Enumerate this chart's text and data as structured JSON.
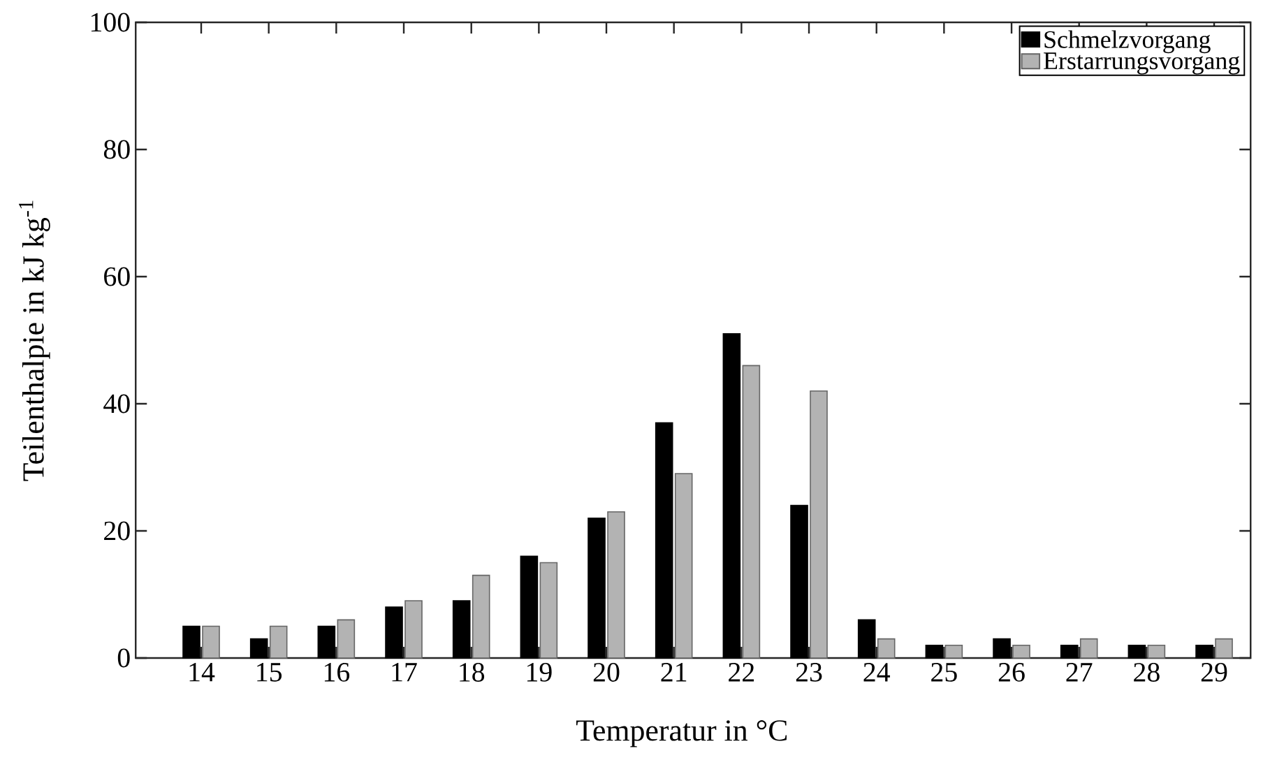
{
  "chart_data": {
    "type": "bar",
    "xlabel": "Temperatur in °C",
    "ylabel": "Teilenthalpie in kJ kg$^{-1}$",
    "categories": [
      "14",
      "15",
      "16",
      "17",
      "18",
      "19",
      "20",
      "21",
      "22",
      "23",
      "24",
      "25",
      "26",
      "27",
      "28",
      "29"
    ],
    "series": [
      {
        "name": "Schmelzvorgang",
        "color": "#000000",
        "values": [
          5,
          3,
          5,
          8,
          9,
          16,
          22,
          37,
          51,
          24,
          6,
          2,
          3,
          2,
          2,
          2
        ]
      },
      {
        "name": "Erstarrungsvorgang",
        "color": "#b3b3b3",
        "values": [
          5,
          5,
          6,
          9,
          13,
          15,
          23,
          29,
          46,
          42,
          3,
          2,
          2,
          3,
          2,
          3
        ]
      }
    ],
    "ylim": [
      0,
      100
    ],
    "yticks": [
      0,
      20,
      40,
      60,
      80,
      100
    ],
    "grid": false,
    "legend": "top right"
  }
}
